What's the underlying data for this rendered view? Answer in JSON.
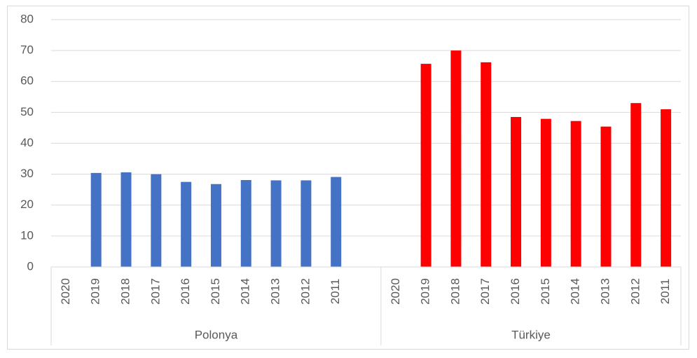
{
  "chart_data": {
    "type": "bar",
    "groups": [
      {
        "name": "Polonya",
        "color": "#4472c4",
        "categories": [
          "2020",
          "2019",
          "2018",
          "2017",
          "2016",
          "2015",
          "2014",
          "2013",
          "2012",
          "2011",
          null
        ],
        "values": [
          null,
          30.4,
          30.6,
          30.0,
          27.5,
          26.8,
          28.1,
          28.0,
          28.0,
          29.1,
          null
        ]
      },
      {
        "name": "Türkiye",
        "color": "#ff0000",
        "categories": [
          "2020",
          "2019",
          "2018",
          "2017",
          "2016",
          "2015",
          "2014",
          "2013",
          "2012",
          "2011"
        ],
        "values": [
          null,
          65.7,
          70.0,
          66.2,
          48.5,
          47.9,
          47.2,
          45.4,
          53.0,
          51.0
        ]
      }
    ],
    "ylim": [
      0,
      80
    ],
    "yticks": [
      0,
      10,
      20,
      30,
      40,
      50,
      60,
      70,
      80
    ],
    "grid": true
  }
}
